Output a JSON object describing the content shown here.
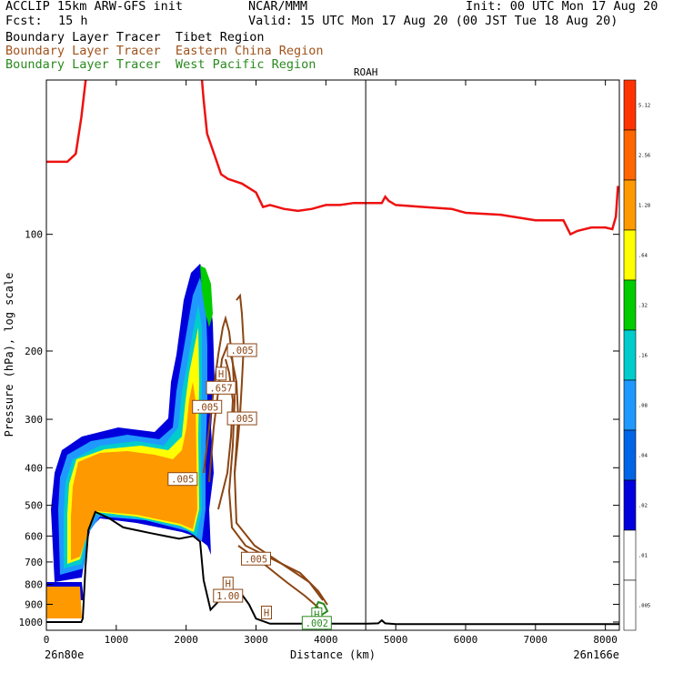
{
  "header": {
    "model_line": "ACCLIP 15km ARW-GFS init",
    "org": "NCAR/MMM",
    "init": "Init: 00 UTC Mon 17 Aug 20",
    "fcst_label": "Fcst:",
    "fcst_value": "15 h",
    "valid": "Valid: 15 UTC Mon 17 Aug 20 (00 JST Tue 18 Aug 20)",
    "tracers": [
      {
        "text": "Boundary Layer Tracer  Tibet Region",
        "color": "#000000"
      },
      {
        "text": "Boundary Layer Tracer  Eastern China Region",
        "color": "#a0521a"
      },
      {
        "text": "Boundary Layer Tracer  West Pacific Region",
        "color": "#2a8a1e"
      }
    ]
  },
  "chart_data": {
    "type": "cross-section",
    "xlabel": "Distance (km)",
    "ylabel": "Pressure (hPa), log scale",
    "xlim": [
      0,
      8200
    ],
    "ylim": [
      1050,
      40
    ],
    "yscale": "log",
    "x_ticks": [
      0,
      1000,
      2000,
      3000,
      4000,
      5000,
      6000,
      7000,
      8000
    ],
    "y_ticks": [
      100,
      200,
      300,
      400,
      500,
      600,
      700,
      800,
      900,
      1000
    ],
    "left_endpoint": "26n80e",
    "right_endpoint": "26n166e",
    "marker": {
      "label": "ROAH",
      "x": 4570
    },
    "tropopause_red": [
      [
        0,
        65
      ],
      [
        300,
        65
      ],
      [
        420,
        62
      ],
      [
        500,
        50
      ],
      [
        600,
        35
      ],
      [
        2200,
        35
      ],
      [
        2250,
        45
      ],
      [
        2300,
        55
      ],
      [
        2400,
        62
      ],
      [
        2500,
        70
      ],
      [
        2600,
        72
      ],
      [
        2800,
        74
      ],
      [
        3000,
        78
      ],
      [
        3100,
        85
      ],
      [
        3200,
        84
      ],
      [
        3400,
        86
      ],
      [
        3600,
        87
      ],
      [
        3800,
        86
      ],
      [
        4000,
        84
      ],
      [
        4200,
        84
      ],
      [
        4400,
        83
      ],
      [
        4600,
        83
      ],
      [
        4800,
        83
      ],
      [
        4850,
        80
      ],
      [
        4900,
        82
      ],
      [
        5000,
        84
      ],
      [
        5400,
        85
      ],
      [
        5800,
        86
      ],
      [
        6000,
        88
      ],
      [
        6500,
        89
      ],
      [
        7000,
        92
      ],
      [
        7400,
        92
      ],
      [
        7500,
        100
      ],
      [
        7600,
        98
      ],
      [
        7800,
        96
      ],
      [
        8000,
        96
      ],
      [
        8100,
        97
      ],
      [
        8150,
        90
      ],
      [
        8180,
        75
      ]
    ],
    "terrain_black": [
      [
        0,
        1000
      ],
      [
        500,
        1000
      ],
      [
        520,
        980
      ],
      [
        560,
        720
      ],
      [
        600,
        580
      ],
      [
        700,
        520
      ],
      [
        900,
        540
      ],
      [
        1100,
        570
      ],
      [
        1300,
        580
      ],
      [
        1500,
        590
      ],
      [
        1700,
        600
      ],
      [
        1900,
        610
      ],
      [
        2100,
        600
      ],
      [
        2200,
        620
      ],
      [
        2250,
        780
      ],
      [
        2350,
        930
      ],
      [
        2500,
        870
      ],
      [
        2700,
        830
      ],
      [
        2800,
        850
      ],
      [
        2900,
        900
      ],
      [
        3000,
        980
      ],
      [
        3200,
        1010
      ],
      [
        3600,
        1010
      ],
      [
        4000,
        1010
      ],
      [
        4600,
        1010
      ],
      [
        4750,
        1008
      ],
      [
        4800,
        990
      ],
      [
        4850,
        1008
      ],
      [
        5000,
        1012
      ],
      [
        8200,
        1012
      ]
    ],
    "contour_levels": [
      ".005",
      ".01",
      ".02",
      ".04",
      ".08",
      ".16",
      ".32",
      ".64",
      "1.28",
      "2.56",
      "5.12"
    ],
    "colorbar_colors": [
      "#ffffff",
      "#ffffff",
      "#0000dd",
      "#0064e6",
      "#1f99ff",
      "#00cccc",
      "#00cc00",
      "#ffff00",
      "#ff9900",
      "#ff6600",
      "#ff3300"
    ],
    "labels": [
      {
        "text": ".005",
        "x": 2800,
        "p": 200
      },
      {
        "text": "H",
        "x": 2500,
        "p": 230
      },
      {
        "text": ".657",
        "x": 2500,
        "p": 250
      },
      {
        "text": ".005",
        "x": 2300,
        "p": 280
      },
      {
        "text": ".005",
        "x": 2800,
        "p": 300
      },
      {
        "text": ".005",
        "x": 1950,
        "p": 430
      },
      {
        "text": ".005",
        "x": 3000,
        "p": 690
      },
      {
        "text": "H",
        "x": 2600,
        "p": 800
      },
      {
        "text": "1.00",
        "x": 2600,
        "p": 860
      },
      {
        "text": "H",
        "x": 3150,
        "p": 950
      },
      {
        "text": "H",
        "x": 3870,
        "p": 960
      },
      {
        "text": ".002",
        "x": 3870,
        "p": 1010
      }
    ]
  }
}
